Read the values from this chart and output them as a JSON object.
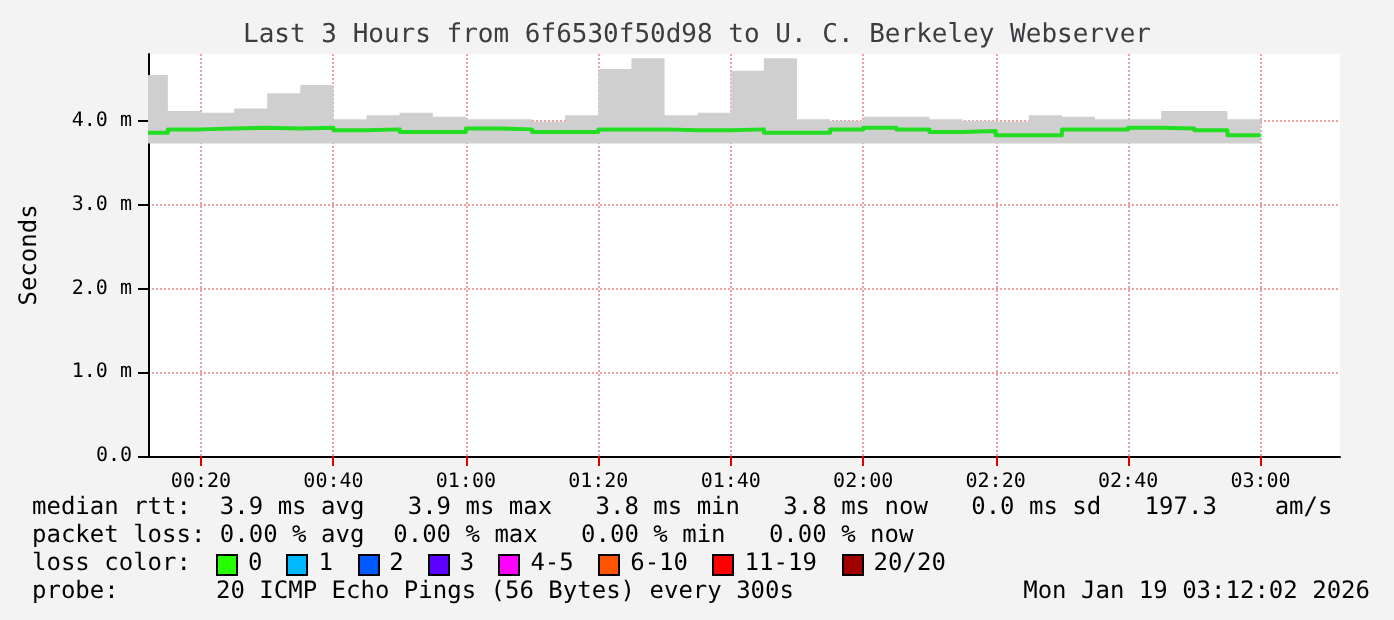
{
  "chart_data": {
    "type": "step",
    "title": "Last 3 Hours from 6f6530f50d98 to U. C. Berkeley Webserver",
    "ylabel": "Seconds",
    "x": [
      0.2,
      0.25,
      0.3333,
      0.4167,
      0.5,
      0.5833,
      0.6667,
      0.75,
      0.8333,
      0.9167,
      1,
      1.0833,
      1.1667,
      1.25,
      1.3333,
      1.4167,
      1.5,
      1.5833,
      1.6667,
      1.75,
      1.8333,
      1.9167,
      2,
      2.0833,
      2.1667,
      2.25,
      2.3333,
      2.4167,
      2.5,
      2.5833,
      2.6667,
      2.75,
      2.8333,
      2.9167,
      3
    ],
    "series": [
      {
        "color": "#22dd22",
        "values": [
          3.86,
          3.9,
          3.91,
          3.92,
          3.91,
          3.92,
          3.89,
          3.9,
          3.87,
          3.87,
          3.91,
          3.9,
          3.87,
          3.87,
          3.9,
          3.9,
          3.89,
          3.89,
          3.9,
          3.86,
          3.86,
          3.9,
          3.92,
          3.9,
          3.87,
          3.88,
          3.83,
          3.83,
          3.9,
          3.9,
          3.92,
          3.91,
          3.89,
          3.83,
          3.83
        ],
        "lower": [
          3.73,
          3.73,
          3.73,
          3.73,
          3.73,
          3.73,
          3.73,
          3.73,
          3.73,
          3.73,
          3.73,
          3.73,
          3.73,
          3.73,
          3.73,
          3.73,
          3.73,
          3.73,
          3.73,
          3.73,
          3.73,
          3.73,
          3.73,
          3.73,
          3.73,
          3.73,
          3.73,
          3.73,
          3.73,
          3.73,
          3.73,
          3.73,
          3.73,
          3.73,
          3.73
        ],
        "upper": [
          4.55,
          4.12,
          4.1,
          4.15,
          4.33,
          4.43,
          4.02,
          4.07,
          4.1,
          4.05,
          4.02,
          4.02,
          3.99,
          4.07,
          4.62,
          4.75,
          4.07,
          4.1,
          4.6,
          4.75,
          4.02,
          4.0,
          4.05,
          4.05,
          4.02,
          4.0,
          3.99,
          4.07,
          4.05,
          4.02,
          4.02,
          4.12,
          4.12,
          4.02,
          4.32
        ]
      }
    ],
    "xlim": [
      0.2,
      3.2
    ],
    "xticks": [
      {
        "value": 0.3333,
        "label": "00:20"
      },
      {
        "value": 0.6667,
        "label": "00:40"
      },
      {
        "value": 1,
        "label": "01:00"
      },
      {
        "value": 1.3333,
        "label": "01:20"
      },
      {
        "value": 1.6667,
        "label": "01:40"
      },
      {
        "value": 2,
        "label": "02:00"
      },
      {
        "value": 2.3333,
        "label": "02:20"
      },
      {
        "value": 2.6667,
        "label": "02:40"
      },
      {
        "value": 3,
        "label": "03:00"
      }
    ],
    "ylim": [
      0,
      4.8
    ],
    "yticks": [
      {
        "value": 0,
        "label": "0.0"
      },
      {
        "value": 1,
        "label": "1.0 m"
      },
      {
        "value": 2,
        "label": "2.0 m"
      },
      {
        "value": 3,
        "label": "3.0 m"
      },
      {
        "value": 4,
        "label": "4.0 m"
      }
    ],
    "grid": true,
    "annotations": [
      "median rtt:  3.9 ms avg   3.9 ms max   3.8 ms min   3.8 ms now   0.0 ms sd   197.3    am/s",
      "packet loss: 0.00 % avg  0.00 % max   0.00 % min   0.00 % now",
      "loss color:",
      "0",
      "1",
      "2",
      "3",
      "4-5",
      "6-10",
      "11-19",
      "20/20",
      "probe:",
      "20 ICMP Echo Pings (56 Bytes) every 300s",
      "Mon Jan 19 03:12:02 2026"
    ]
  }
}
